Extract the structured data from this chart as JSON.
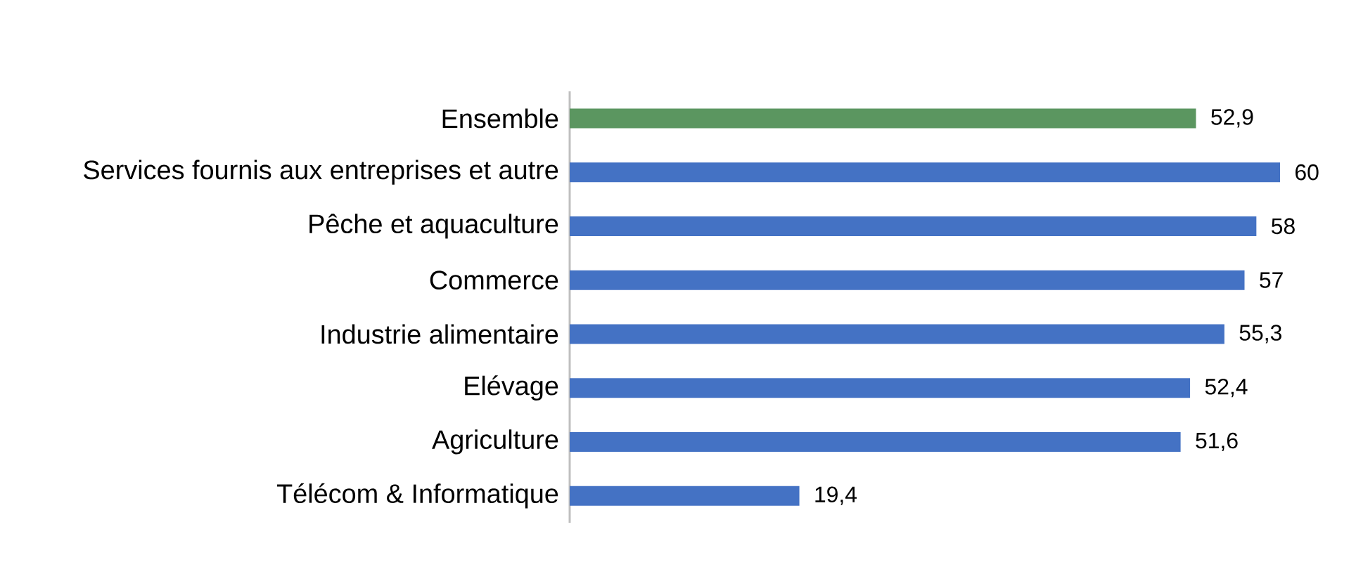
{
  "chart_data": {
    "type": "bar",
    "orientation": "horizontal",
    "categories": [
      "Ensemble",
      "Services fournis aux entreprises et autre",
      "Pêche et aquaculture",
      "Commerce",
      "Industrie alimentaire",
      "Elévage",
      "Agriculture",
      "Télécom & Informatique"
    ],
    "values": [
      52.9,
      60,
      58,
      57,
      55.3,
      52.4,
      51.6,
      19.4
    ],
    "value_labels": [
      "52,9",
      "60",
      "58",
      "57",
      "55,3",
      "52,4",
      "51,6",
      "19,4"
    ],
    "colors": [
      "#5b9660",
      "#4472c4",
      "#4472c4",
      "#4472c4",
      "#4472c4",
      "#4472c4",
      "#4472c4",
      "#4472c4"
    ]
  }
}
